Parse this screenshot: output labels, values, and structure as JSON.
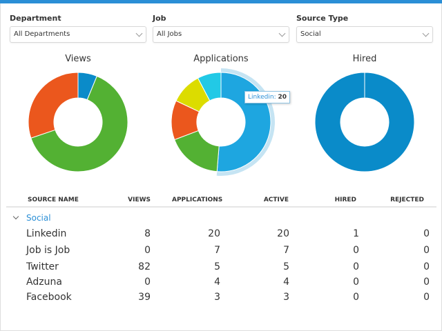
{
  "filters": [
    {
      "label": "Department",
      "value": "All Departments"
    },
    {
      "label": "Job",
      "value": "All Jobs"
    },
    {
      "label": "Source Type",
      "value": "Social"
    }
  ],
  "colors": {
    "blue_dark": "#0a8bc9",
    "blue": "#1ea6e0",
    "green": "#53b133",
    "orange": "#eb571d",
    "yellow": "#dcdc00",
    "cyan": "#22c9e6",
    "accent": "#2b8fd6"
  },
  "chart_data": [
    {
      "type": "pie",
      "title": "Views",
      "donut": true,
      "slices": [
        {
          "label": "Linkedin",
          "value": 8,
          "color": "#0a8bc9"
        },
        {
          "label": "Twitter",
          "value": 82,
          "color": "#53b133"
        },
        {
          "label": "Facebook",
          "value": 39,
          "color": "#eb571d"
        }
      ]
    },
    {
      "type": "pie",
      "title": "Applications",
      "donut": true,
      "highlighted": "Linkedin",
      "slices": [
        {
          "label": "Linkedin",
          "value": 20,
          "color": "#1ea6e0"
        },
        {
          "label": "Job is Job",
          "value": 7,
          "color": "#53b133"
        },
        {
          "label": "Twitter",
          "value": 5,
          "color": "#eb571d"
        },
        {
          "label": "Adzuna",
          "value": 4,
          "color": "#dcdc00"
        },
        {
          "label": "Facebook",
          "value": 3,
          "color": "#22c9e6"
        }
      ]
    },
    {
      "type": "pie",
      "title": "Hired",
      "donut": true,
      "slices": [
        {
          "label": "Linkedin",
          "value": 1,
          "color": "#0a8bc9"
        }
      ]
    }
  ],
  "tooltip": {
    "label": "Linkedin:",
    "value": "20"
  },
  "table": {
    "headers": [
      "SOURCE NAME",
      "VIEWS",
      "APPLICATIONS",
      "ACTIVE",
      "HIRED",
      "REJECTED"
    ],
    "group": "Social",
    "rows": [
      [
        "Linkedin",
        "8",
        "20",
        "20",
        "1",
        "0"
      ],
      [
        "Job is Job",
        "0",
        "7",
        "7",
        "0",
        "0"
      ],
      [
        "Twitter",
        "82",
        "5",
        "5",
        "0",
        "0"
      ],
      [
        "Adzuna",
        "0",
        "4",
        "4",
        "0",
        "0"
      ],
      [
        "Facebook",
        "39",
        "3",
        "3",
        "0",
        "0"
      ]
    ]
  }
}
